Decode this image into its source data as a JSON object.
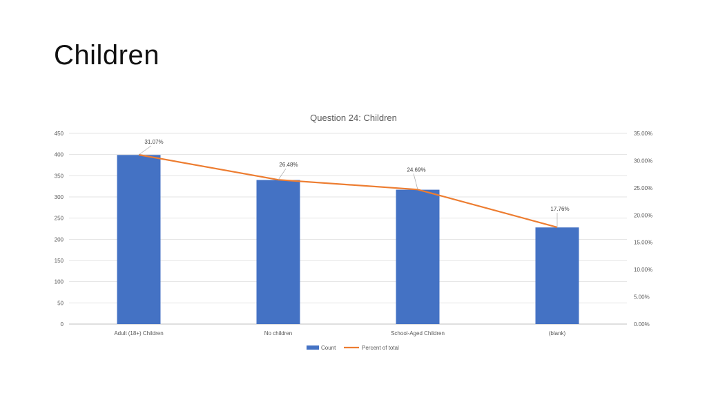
{
  "slide": {
    "title": "Children"
  },
  "chart_data": {
    "type": "bar",
    "title": "Question 24: Children",
    "categories": [
      "Adult (18+) Children",
      "No children",
      "School-Aged Children",
      "(blank)"
    ],
    "series": [
      {
        "name": "Count",
        "type": "bar",
        "axis": "left",
        "color": "#4472C4",
        "values": [
          399,
          340,
          317,
          228
        ]
      },
      {
        "name": "Percent of total",
        "type": "line",
        "axis": "right",
        "color": "#ED7D31",
        "values": [
          31.07,
          26.48,
          24.69,
          17.76
        ],
        "labels": [
          "31.07%",
          "26.48%",
          "24.69%",
          "17.76%"
        ]
      }
    ],
    "y_left": {
      "min": 0,
      "max": 450,
      "ticks": [
        "0",
        "50",
        "100",
        "150",
        "200",
        "250",
        "300",
        "350",
        "400",
        "450"
      ]
    },
    "y_right": {
      "min": 0,
      "max": 35,
      "ticks": [
        "0.00%",
        "5.00%",
        "10.00%",
        "15.00%",
        "20.00%",
        "25.00%",
        "30.00%",
        "35.00%"
      ]
    },
    "grid": true,
    "legend_position": "bottom"
  }
}
